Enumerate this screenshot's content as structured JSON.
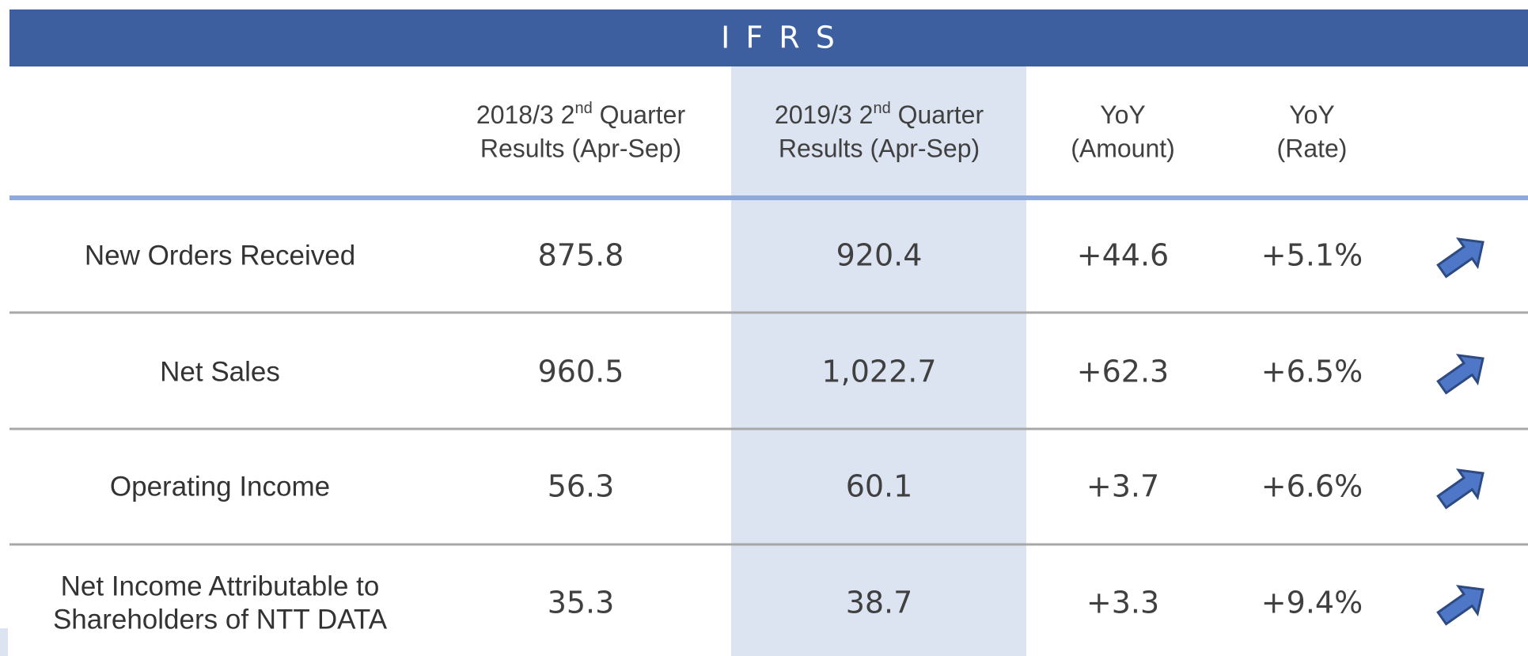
{
  "header": {
    "title": "I F R S"
  },
  "table": {
    "columns": [
      {
        "pre": "2018/3 2",
        "sup": "nd",
        "post": " Quarter",
        "line2": "Results (Apr-Sep)"
      },
      {
        "pre": "2019/3 2",
        "sup": "nd",
        "post": " Quarter",
        "line2": "Results (Apr-Sep)"
      },
      {
        "pre": "YoY",
        "line2": "(Amount)"
      },
      {
        "pre": "YoY",
        "line2": "(Rate)"
      }
    ],
    "rows": [
      {
        "label": [
          "New Orders Received"
        ],
        "cells": [
          "875.8",
          "920.4",
          "+44.6",
          "+5.1%"
        ]
      },
      {
        "label": [
          "Net Sales"
        ],
        "cells": [
          "960.5",
          "1,022.7",
          "+62.3",
          "+6.5%"
        ]
      },
      {
        "label": [
          "Operating Income"
        ],
        "cells": [
          "56.3",
          "60.1",
          "+3.7",
          "+6.6%"
        ]
      },
      {
        "label": [
          "Net Income Attributable to",
          "Shareholders of NTT DATA"
        ],
        "cells": [
          "35.3",
          "38.7",
          "+3.3",
          "+9.4%"
        ]
      }
    ]
  }
}
